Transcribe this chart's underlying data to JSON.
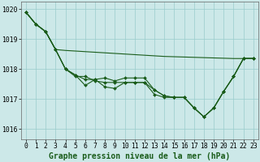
{
  "title": "Graphe pression niveau de la mer (hPa)",
  "bg_color": "#cce8e8",
  "grid_color": "#99cccc",
  "line_color": "#1a5c1a",
  "marker_color": "#1a5c1a",
  "ylim": [
    1015.65,
    1020.25
  ],
  "yticks": [
    1016,
    1017,
    1018,
    1019,
    1020
  ],
  "xlim": [
    -0.5,
    23.5
  ],
  "xticks": [
    0,
    1,
    2,
    3,
    4,
    5,
    6,
    7,
    8,
    9,
    10,
    11,
    12,
    13,
    14,
    15,
    16,
    17,
    18,
    19,
    20,
    21,
    22,
    23
  ],
  "series_no_marker": {
    "x": [
      0,
      1,
      2,
      3,
      4,
      5,
      6,
      7,
      8,
      9,
      10,
      11,
      12,
      13,
      14,
      15,
      16,
      17,
      18,
      19,
      20,
      21,
      22,
      23
    ],
    "y": [
      1019.9,
      1019.5,
      1019.25,
      1018.65,
      1018.62,
      1018.6,
      1018.58,
      1018.56,
      1018.54,
      1018.52,
      1018.5,
      1018.48,
      1018.46,
      1018.44,
      1018.42,
      1018.41,
      1018.4,
      1018.39,
      1018.38,
      1018.37,
      1018.36,
      1018.35,
      1018.35,
      1018.35
    ]
  },
  "series_with_markers": [
    {
      "x": [
        0,
        1,
        2,
        3,
        4,
        5,
        6,
        7,
        8,
        9,
        10,
        11,
        12,
        13,
        14,
        15,
        16,
        17,
        18,
        19,
        20,
        21,
        22,
        23
      ],
      "y": [
        1019.9,
        1019.5,
        1019.25,
        1018.65,
        1018.0,
        1017.75,
        1017.75,
        1017.6,
        1017.55,
        1017.55,
        1017.55,
        1017.55,
        1017.55,
        1017.15,
        1017.05,
        1017.05,
        1017.05,
        1016.7,
        1016.4,
        1016.7,
        1017.25,
        1017.75,
        1018.35,
        1018.35
      ]
    },
    {
      "x": [
        0,
        1,
        2,
        3,
        4,
        5,
        6,
        7,
        8,
        9,
        10,
        11,
        12,
        13,
        14,
        15,
        16,
        17,
        18,
        19,
        20,
        21,
        22,
        23
      ],
      "y": [
        1019.9,
        1019.5,
        1019.25,
        1018.65,
        1018.0,
        1017.8,
        1017.45,
        1017.65,
        1017.4,
        1017.35,
        1017.55,
        1017.55,
        1017.55,
        1017.3,
        1017.1,
        1017.05,
        1017.05,
        1016.7,
        1016.4,
        1016.7,
        1017.25,
        1017.75,
        1018.35,
        1018.35
      ]
    },
    {
      "x": [
        0,
        1,
        2,
        3,
        4,
        5,
        6,
        7,
        8,
        9,
        10,
        11,
        12,
        13,
        14,
        15,
        16,
        17,
        18,
        19,
        20,
        21,
        22,
        23
      ],
      "y": [
        1019.9,
        1019.5,
        1019.25,
        1018.65,
        1018.0,
        1017.8,
        1017.65,
        1017.65,
        1017.7,
        1017.6,
        1017.7,
        1017.7,
        1017.7,
        1017.3,
        1017.1,
        1017.05,
        1017.05,
        1016.7,
        1016.4,
        1016.7,
        1017.25,
        1017.75,
        1018.35,
        1018.35
      ]
    }
  ],
  "tick_fontsize": 5.8,
  "title_fontsize": 7.0
}
